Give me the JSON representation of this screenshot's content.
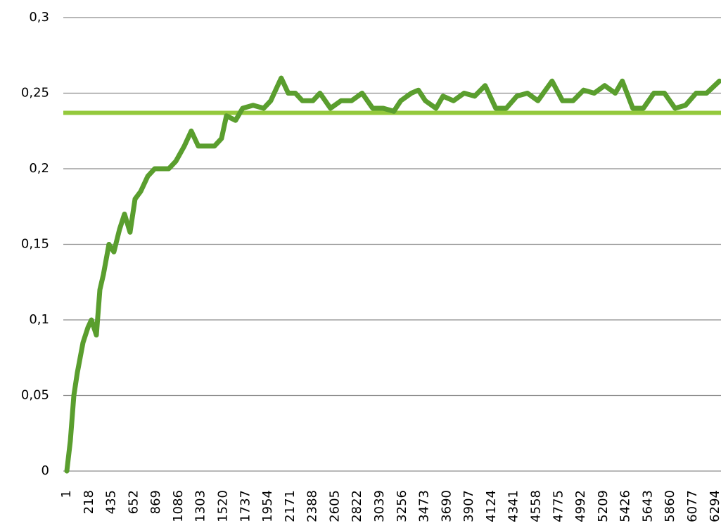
{
  "chart_data": {
    "type": "line",
    "x": [
      1,
      35,
      69,
      103,
      158,
      206,
      240,
      288,
      322,
      356,
      410,
      458,
      513,
      561,
      615,
      663,
      718,
      786,
      854,
      936,
      990,
      1059,
      1141,
      1209,
      1277,
      1366,
      1434,
      1502,
      1550,
      1639,
      1707,
      1809,
      1912,
      1980,
      2048,
      2082,
      2150,
      2219,
      2287,
      2389,
      2458,
      2560,
      2662,
      2764,
      2867,
      2969,
      3072,
      3174,
      3242,
      3345,
      3413,
      3481,
      3584,
      3652,
      3754,
      3857,
      3959,
      4061,
      4164,
      4266,
      4368,
      4471,
      4573,
      4710,
      4812,
      4914,
      5017,
      5119,
      5221,
      5324,
      5392,
      5494,
      5596,
      5699,
      5801,
      5904,
      6006,
      6108,
      6211,
      6334
    ],
    "series": [
      {
        "color": "#5a9e2e",
        "values": [
          0,
          0.02,
          0.05,
          0.065,
          0.085,
          0.095,
          0.1,
          0.09,
          0.12,
          0.13,
          0.15,
          0.145,
          0.16,
          0.17,
          0.158,
          0.18,
          0.185,
          0.195,
          0.2,
          0.2,
          0.2,
          0.205,
          0.215,
          0.225,
          0.215,
          0.215,
          0.215,
          0.22,
          0.235,
          0.232,
          0.24,
          0.242,
          0.24,
          0.245,
          0.255,
          0.26,
          0.25,
          0.25,
          0.245,
          0.245,
          0.25,
          0.24,
          0.245,
          0.245,
          0.25,
          0.24,
          0.24,
          0.238,
          0.245,
          0.25,
          0.252,
          0.245,
          0.24,
          0.248,
          0.245,
          0.25,
          0.248,
          0.255,
          0.24,
          0.24,
          0.248,
          0.25,
          0.245,
          0.258,
          0.245,
          0.245,
          0.252,
          0.25,
          0.255,
          0.25,
          0.258,
          0.24,
          0.24,
          0.25,
          0.25,
          0.24,
          0.242,
          0.25,
          0.25,
          0.258
        ]
      }
    ],
    "reference_line": {
      "value": 0.237,
      "color": "#94c93c"
    },
    "xlim": [
      1,
      6350
    ],
    "xticks": [
      1,
      218,
      435,
      652,
      869,
      1086,
      1303,
      1520,
      1737,
      1954,
      2171,
      2388,
      2605,
      2822,
      3039,
      3256,
      3473,
      3690,
      3907,
      4124,
      4341,
      4558,
      4775,
      4992,
      5209,
      5426,
      5643,
      5860,
      6077,
      6294
    ],
    "ylim": [
      0,
      0.3
    ],
    "yticks": [
      0,
      {
        "value": 0.05,
        "label": "0,05"
      },
      {
        "value": 0.1,
        "label": "0,1"
      },
      {
        "value": 0.15,
        "label": "0,15"
      },
      {
        "value": 0.2,
        "label": "0,2"
      },
      {
        "value": 0.25,
        "label": "0,25"
      },
      {
        "value": 0.3,
        "label": "0,3"
      }
    ],
    "grid": true
  }
}
